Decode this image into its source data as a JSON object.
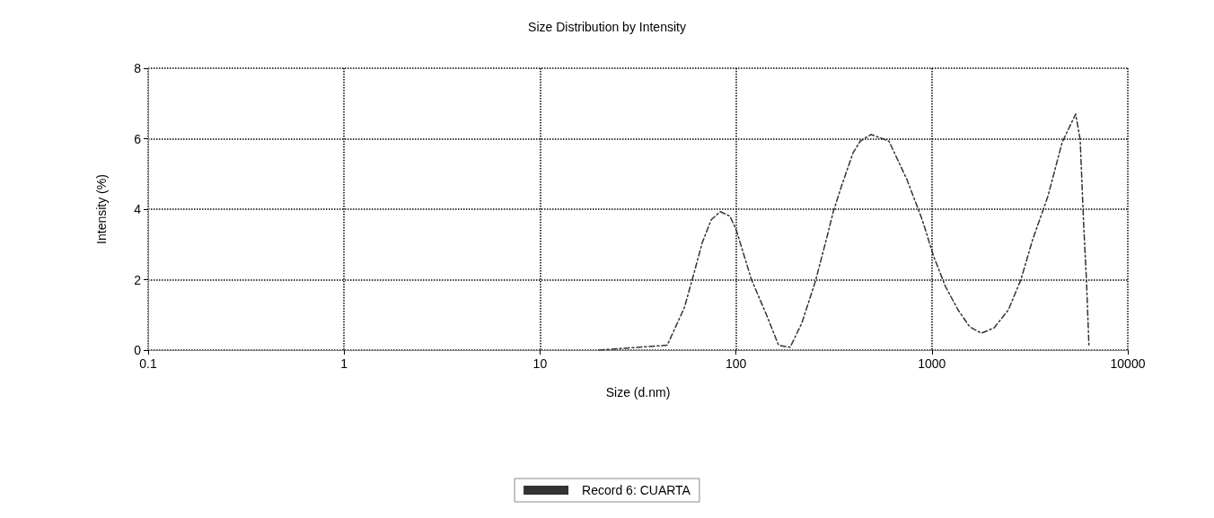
{
  "chart_data": {
    "type": "line",
    "title": "Size Distribution by Intensity",
    "xlabel": "Size (d.nm)",
    "ylabel": "Intensity (%)",
    "log": "x",
    "xlim": [
      0.1,
      10000
    ],
    "xticks": [
      0.1,
      1,
      10,
      100,
      1000,
      10000
    ],
    "ylim": [
      0,
      8
    ],
    "yticks": [
      0,
      2,
      4,
      6,
      8
    ],
    "grid": true,
    "legend": "bottom",
    "marker": "none",
    "line_style": "dashed",
    "series": [
      {
        "name": "Record 6: CUARTA",
        "color": "#333333",
        "x": [
          20,
          44.6,
          54.5,
          61.2,
          67.3,
          74.8,
          83.2,
          93.3,
          100.5,
          120,
          142,
          165,
          189,
          217,
          254,
          289,
          314,
          345,
          396,
          431,
          489,
          604,
          746,
          893,
          1023,
          1174,
          1361,
          1561,
          1790,
          2076,
          2457,
          2847,
          3266,
          3908,
          4626,
          5419,
          5713,
          5960,
          6150,
          6340
        ],
        "values": [
          0,
          0.14,
          1.2,
          2.2,
          3.05,
          3.7,
          3.93,
          3.8,
          3.4,
          2.0,
          1.05,
          0.14,
          0.08,
          0.77,
          1.94,
          3.13,
          3.93,
          4.64,
          5.6,
          5.93,
          6.12,
          5.93,
          4.84,
          3.7,
          2.65,
          1.8,
          1.14,
          0.66,
          0.48,
          0.63,
          1.14,
          2.0,
          3.13,
          4.36,
          5.9,
          6.7,
          5.98,
          3.5,
          2.0,
          0.08
        ]
      }
    ]
  }
}
